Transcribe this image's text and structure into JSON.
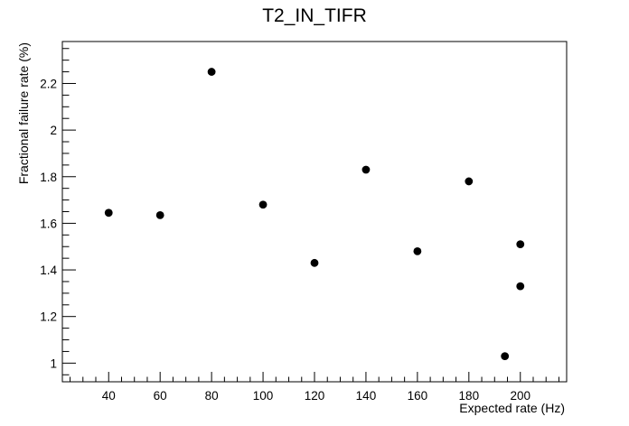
{
  "chart_data": {
    "type": "scatter",
    "title": "T2_IN_TIFR",
    "xlabel": "Expected rate (Hz)",
    "ylabel": "Fractional failure rate (%)",
    "xlim": [
      22,
      218
    ],
    "ylim": [
      0.92,
      2.38
    ],
    "xticks": [
      40,
      60,
      80,
      100,
      120,
      140,
      160,
      180,
      200
    ],
    "xtick_labels": [
      "40",
      "60",
      "80",
      "100",
      "120",
      "140",
      "160",
      "180",
      "200"
    ],
    "yticks": [
      1,
      1.2,
      1.4,
      1.6,
      1.8,
      2,
      2.2
    ],
    "ytick_labels": [
      "1",
      "1.2",
      "1.4",
      "1.6",
      "1.8",
      "2",
      "2.2"
    ],
    "grid": false,
    "legend": false,
    "marker_color": "#000000",
    "series": [
      {
        "points": [
          {
            "x": 40,
            "y": 1.645
          },
          {
            "x": 60,
            "y": 1.635
          },
          {
            "x": 80,
            "y": 2.25
          },
          {
            "x": 100,
            "y": 1.68
          },
          {
            "x": 120,
            "y": 1.43
          },
          {
            "x": 140,
            "y": 1.83
          },
          {
            "x": 160,
            "y": 1.48
          },
          {
            "x": 180,
            "y": 1.78
          },
          {
            "x": 194,
            "y": 1.03
          },
          {
            "x": 200,
            "y": 1.51
          },
          {
            "x": 200,
            "y": 1.33
          }
        ]
      }
    ]
  }
}
